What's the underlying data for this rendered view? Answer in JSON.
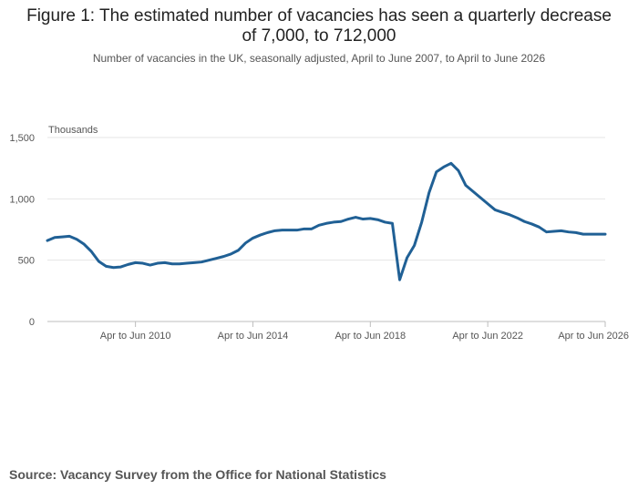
{
  "title": "Figure 1: The estimated number of vacancies has seen a quarterly decrease of 7,000, to 712,000",
  "subtitle": "Number of vacancies in the UK, seasonally adjusted, April to June 2007, to April to June 2026",
  "source": "Source: Vacancy Survey from the Office for National Statistics",
  "colors": {
    "line": "#206095",
    "grid": "#e6e6e6",
    "axis": "#bebebe",
    "text": "#555555"
  },
  "chart_data": {
    "type": "line",
    "title": "Figure 1: The estimated number of vacancies has seen a quarterly decrease of 7,000, to 712,000",
    "subtitle": "Number of vacancies in the UK, seasonally adjusted, April to June 2007, to April to June 2026",
    "xlabel": "",
    "ylabel": "Thousands",
    "ylim": [
      0,
      1500
    ],
    "yticks": [
      0,
      500,
      1000,
      1500
    ],
    "ytick_labels": [
      "0",
      "500",
      "1,000",
      "1,500"
    ],
    "xticks": [
      2010,
      2014,
      2018,
      2022,
      2026
    ],
    "xtick_labels": [
      "Apr to Jun 2010",
      "Apr to Jun 2014",
      "Apr to Jun 2018",
      "Apr to Jun 2022",
      "Apr to Jun 2026"
    ],
    "xlim": [
      2007,
      2026
    ],
    "grid": true,
    "legend": "none",
    "series": [
      {
        "x": [
          2007.0,
          2007.25,
          2007.5,
          2007.75,
          2008.0,
          2008.25,
          2008.5,
          2008.75,
          2009.0,
          2009.25,
          2009.5,
          2009.75,
          2010.0,
          2010.25,
          2010.5,
          2010.75,
          2011.0,
          2011.25,
          2011.5,
          2011.75,
          2012.0,
          2012.25,
          2012.5,
          2012.75,
          2013.0,
          2013.25,
          2013.5,
          2013.75,
          2014.0,
          2014.25,
          2014.5,
          2014.75,
          2015.0,
          2015.25,
          2015.5,
          2015.75,
          2016.0,
          2016.25,
          2016.5,
          2016.75,
          2017.0,
          2017.25,
          2017.5,
          2017.75,
          2018.0,
          2018.25,
          2018.5,
          2018.75,
          2019.0,
          2019.25,
          2019.5,
          2019.75,
          2020.0,
          2020.25,
          2020.5,
          2020.75,
          2021.0,
          2021.25,
          2021.5,
          2021.75,
          2022.0,
          2022.25,
          2022.5,
          2022.75,
          2023.0,
          2023.25,
          2023.5,
          2023.75,
          2024.0,
          2024.25,
          2024.5,
          2024.75,
          2025.0,
          2025.25,
          2025.5,
          2025.75,
          2026.0
        ],
        "values": [
          660,
          685,
          690,
          695,
          670,
          630,
          570,
          490,
          450,
          440,
          445,
          465,
          480,
          475,
          460,
          475,
          480,
          470,
          470,
          475,
          480,
          485,
          500,
          515,
          530,
          550,
          580,
          640,
          680,
          705,
          725,
          740,
          745,
          745,
          745,
          755,
          755,
          785,
          800,
          810,
          815,
          835,
          850,
          835,
          840,
          830,
          810,
          800,
          340,
          520,
          620,
          810,
          1050,
          1220,
          1260,
          1290,
          1230,
          1110,
          1060,
          1010,
          960,
          910,
          890,
          870,
          845,
          815,
          795,
          770,
          730,
          735,
          740,
          730,
          725,
          712,
          712,
          712,
          712
        ]
      }
    ]
  }
}
